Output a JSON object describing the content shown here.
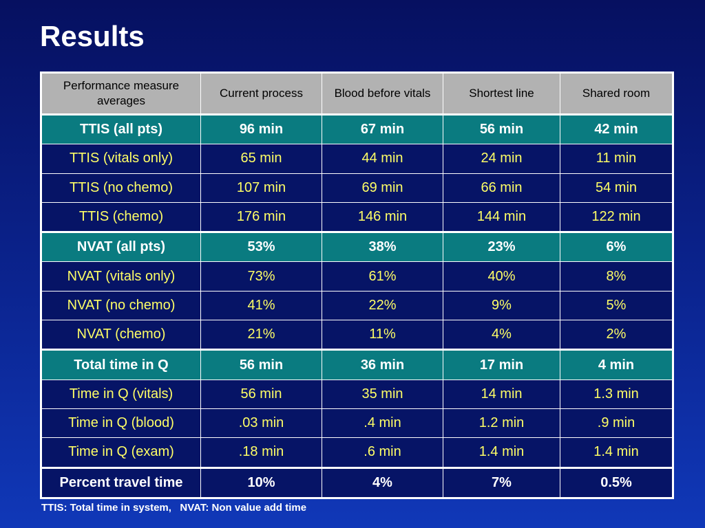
{
  "slide": {
    "title": "Results",
    "footnote": "TTIS: Total time in system,   NVAT: Non value add time"
  },
  "table": {
    "headers": [
      "Performance measure averages",
      "Current process",
      "Blood before vitals",
      "Shortest line",
      "Shared room"
    ],
    "rows": [
      {
        "style": "primary",
        "cells": [
          "TTIS (all pts)",
          "96 min",
          "67 min",
          "56 min",
          "42 min"
        ]
      },
      {
        "style": "sub",
        "cells": [
          "TTIS (vitals only)",
          "65 min",
          "44 min",
          "24 min",
          "11 min"
        ]
      },
      {
        "style": "sub",
        "cells": [
          "TTIS (no chemo)",
          "107 min",
          "69 min",
          "66 min",
          "54 min"
        ]
      },
      {
        "style": "sub",
        "cells": [
          "TTIS (chemo)",
          "176 min",
          "146 min",
          "144 min",
          "122 min"
        ]
      },
      {
        "style": "primary",
        "cells": [
          "NVAT (all pts)",
          "53%",
          "38%",
          "23%",
          "6%"
        ]
      },
      {
        "style": "sub",
        "cells": [
          "NVAT (vitals only)",
          "73%",
          "61%",
          "40%",
          "8%"
        ]
      },
      {
        "style": "sub",
        "cells": [
          "NVAT (no chemo)",
          "41%",
          "22%",
          "9%",
          "5%"
        ]
      },
      {
        "style": "sub",
        "cells": [
          "NVAT (chemo)",
          "21%",
          "11%",
          "4%",
          "2%"
        ]
      },
      {
        "style": "primary",
        "cells": [
          "Total time in Q",
          "56 min",
          "36 min",
          "17 min",
          "4 min"
        ]
      },
      {
        "style": "sub",
        "cells": [
          "Time in Q (vitals)",
          "56 min",
          "35 min",
          "14 min",
          "1.3 min"
        ]
      },
      {
        "style": "sub",
        "cells": [
          "Time in Q (blood)",
          ".03 min",
          ".4 min",
          "1.2 min",
          ".9 min"
        ]
      },
      {
        "style": "sub",
        "cells": [
          "Time in Q (exam)",
          ".18 min",
          ".6 min",
          "1.4 min",
          "1.4 min"
        ]
      },
      {
        "style": "travel",
        "cells": [
          "Percent travel time",
          "10%",
          "4%",
          "7%",
          "0.5%"
        ]
      }
    ]
  },
  "colors": {
    "background": "#0b2490",
    "header_fill": "#b2b2b2",
    "primary_row_fill": "#0a7b80",
    "sub_row_fill": "#061466",
    "sub_row_text": "#ffff66",
    "primary_row_text": "#ffffff"
  }
}
